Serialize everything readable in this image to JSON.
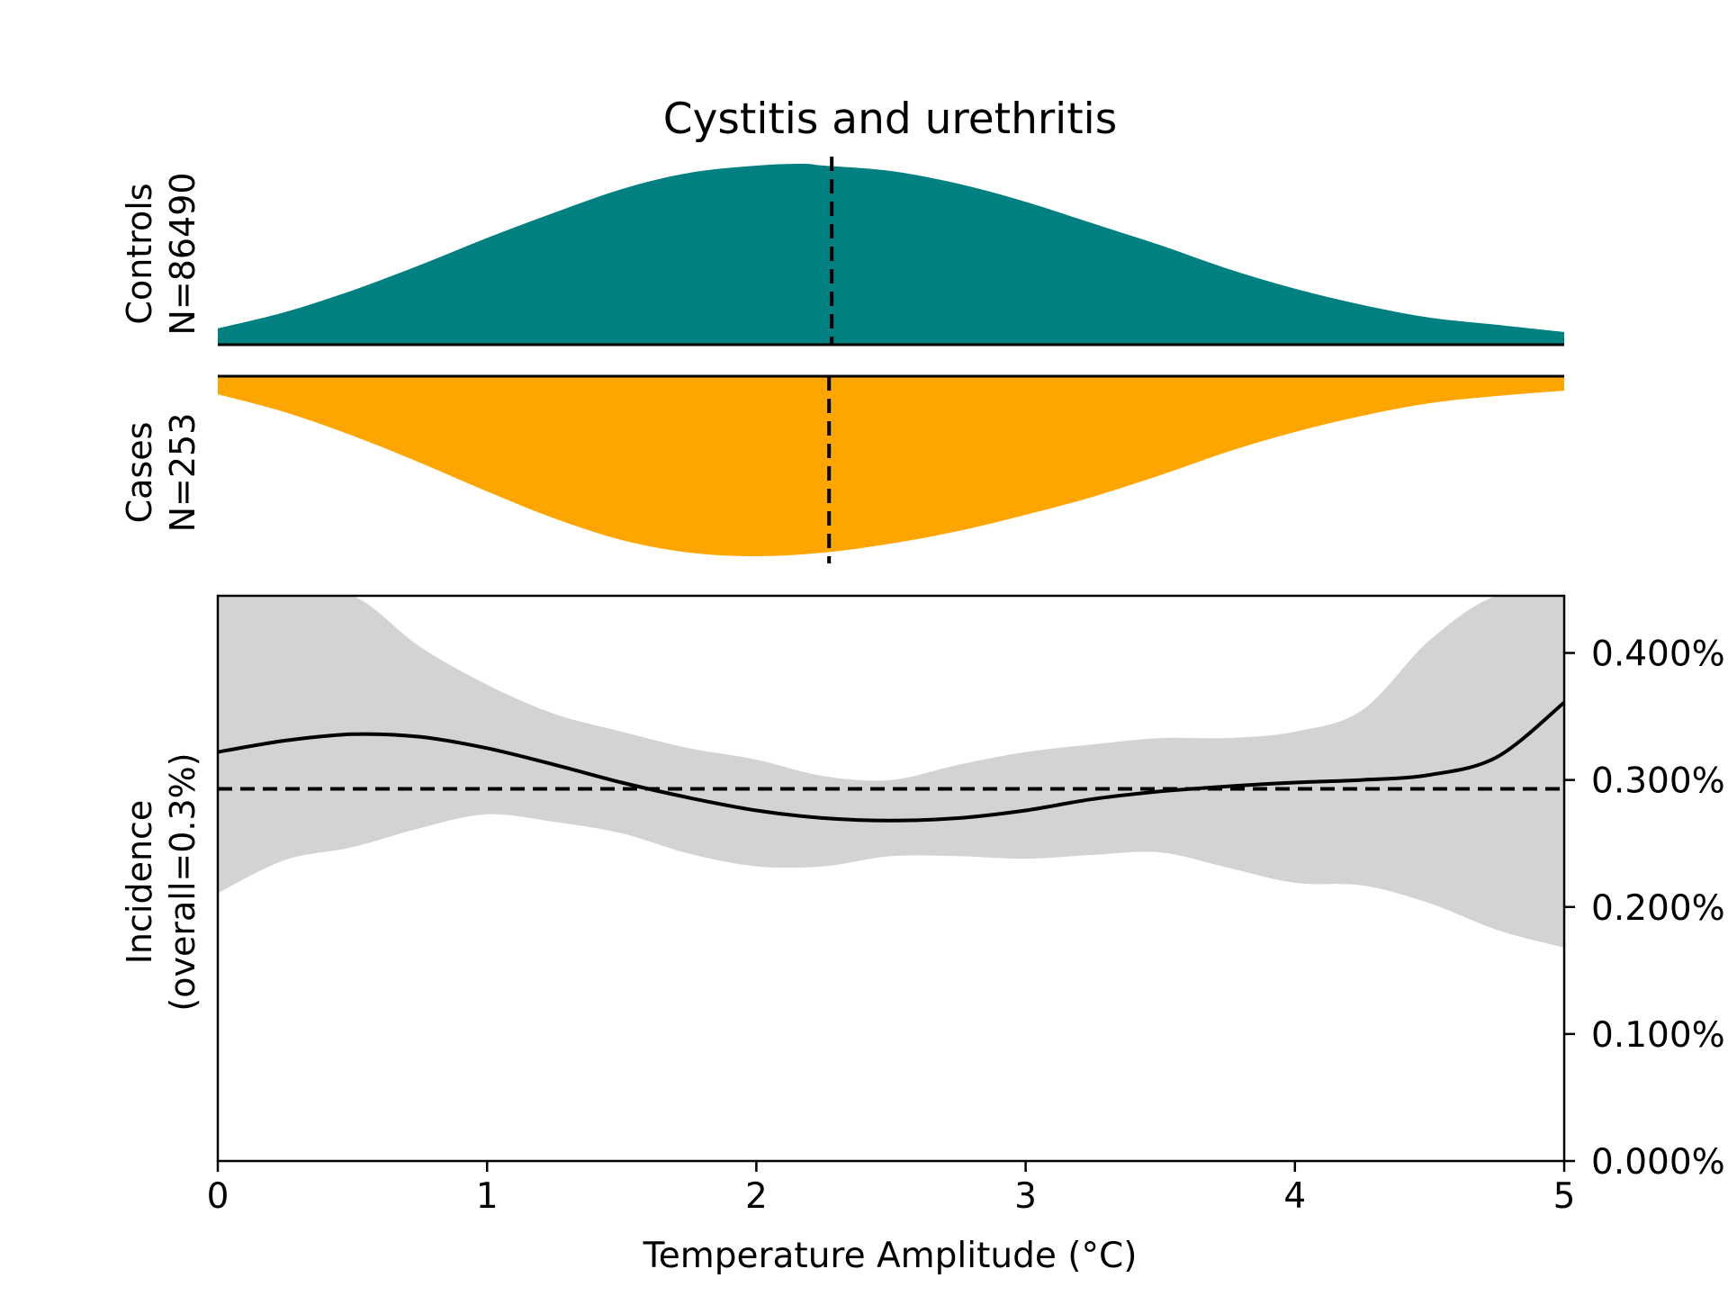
{
  "chart_data": {
    "title": "Cystitis and urethritis",
    "xlabel": "Temperature Amplitude (°C)",
    "xlim": [
      0,
      5
    ],
    "x_ticks": [
      0,
      1,
      2,
      3,
      4,
      5
    ],
    "x_tick_labels": [
      "0",
      "1",
      "2",
      "3",
      "4",
      "5"
    ],
    "controls": {
      "type": "area",
      "label_line1": "Controls",
      "label_line2": "N=86490",
      "color": "#008080",
      "median": 2.28,
      "x": [
        0,
        0.25,
        0.5,
        0.75,
        1.0,
        1.25,
        1.5,
        1.75,
        2.0,
        2.17,
        2.25,
        2.5,
        2.75,
        3.0,
        3.25,
        3.5,
        3.75,
        4.0,
        4.25,
        4.5,
        4.75,
        5.0
      ],
      "density": [
        0.09,
        0.18,
        0.3,
        0.44,
        0.59,
        0.73,
        0.86,
        0.95,
        0.99,
        1.0,
        0.99,
        0.96,
        0.89,
        0.79,
        0.67,
        0.55,
        0.42,
        0.31,
        0.22,
        0.15,
        0.11,
        0.07
      ]
    },
    "cases": {
      "type": "area",
      "label_line1": "Cases",
      "label_line2": "N=253",
      "color": "#FFA500",
      "median": 2.27,
      "x": [
        0,
        0.25,
        0.5,
        0.75,
        1.0,
        1.25,
        1.5,
        1.75,
        2.0,
        2.25,
        2.5,
        2.75,
        3.0,
        3.25,
        3.5,
        3.75,
        4.0,
        4.25,
        4.5,
        4.75,
        5.0
      ],
      "density": [
        0.1,
        0.2,
        0.33,
        0.48,
        0.64,
        0.79,
        0.91,
        0.98,
        1.0,
        0.98,
        0.93,
        0.86,
        0.77,
        0.67,
        0.55,
        0.42,
        0.31,
        0.22,
        0.15,
        0.11,
        0.08
      ]
    },
    "incidence": {
      "type": "line",
      "ylabel_line1": "Incidence",
      "ylabel_line2": "(overall=0.3%)",
      "ylim": [
        0,
        0.00445
      ],
      "y_ticks": [
        0,
        0.001,
        0.002,
        0.003,
        0.004
      ],
      "y_tick_labels": [
        "0.000%",
        "0.100%",
        "0.200%",
        "0.300%",
        "0.400%"
      ],
      "overall": 0.00293,
      "line_color": "#000000",
      "band_color": "#D3D3D3",
      "x": [
        0,
        0.25,
        0.5,
        0.75,
        1.0,
        1.25,
        1.5,
        1.75,
        2.0,
        2.25,
        2.5,
        2.75,
        3.0,
        3.25,
        3.5,
        3.75,
        4.0,
        4.25,
        4.5,
        4.75,
        5.0
      ],
      "y": [
        0.00322,
        0.00331,
        0.00336,
        0.00334,
        0.00325,
        0.00312,
        0.00298,
        0.00286,
        0.00276,
        0.0027,
        0.00268,
        0.0027,
        0.00276,
        0.00285,
        0.00291,
        0.00295,
        0.00298,
        0.003,
        0.00304,
        0.00318,
        0.00361
      ],
      "upper": [
        0.00445,
        0.00445,
        0.00445,
        0.00405,
        0.00375,
        0.00352,
        0.00338,
        0.00325,
        0.00316,
        0.00303,
        0.003,
        0.00312,
        0.00322,
        0.00328,
        0.00333,
        0.00333,
        0.00338,
        0.00355,
        0.0041,
        0.00445,
        0.00445
      ],
      "lower": [
        0.00211,
        0.00237,
        0.00247,
        0.00262,
        0.00273,
        0.00267,
        0.00258,
        0.00242,
        0.00232,
        0.00232,
        0.0024,
        0.0024,
        0.00238,
        0.00241,
        0.00243,
        0.00231,
        0.00219,
        0.00217,
        0.00203,
        0.00182,
        0.00168
      ]
    }
  }
}
